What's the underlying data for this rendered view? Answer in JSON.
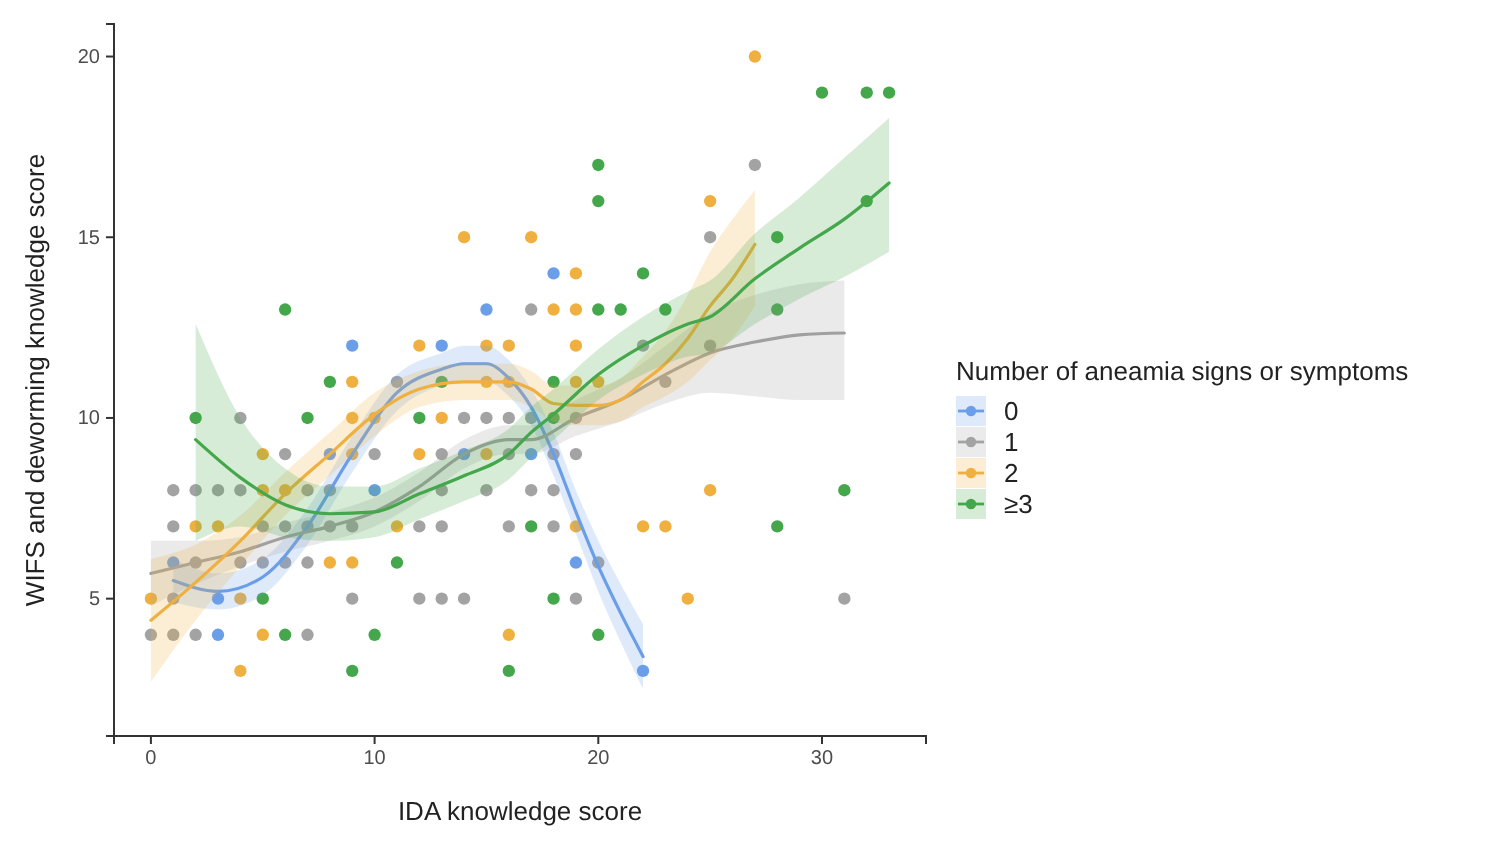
{
  "chart_data": {
    "type": "scatter",
    "xlabel": "IDA knowledge score",
    "ylabel": "WIFS and deworming knowledge score",
    "legend_title": "Number of aneamia signs or symptoms",
    "xlim": [
      -1.65,
      34.65
    ],
    "ylim": [
      1.2,
      20.9
    ],
    "xticks": [
      0,
      10,
      20,
      30
    ],
    "yticks": [
      5,
      10,
      15,
      20
    ],
    "grid": false,
    "legend": "right",
    "series": [
      {
        "marker": "circle",
        "name": "0",
        "color": "#6b9ee8",
        "x": [
          3,
          3,
          1,
          8,
          9,
          10,
          13,
          14,
          15,
          17,
          18,
          19,
          22
        ],
        "values": [
          4,
          5,
          6,
          9,
          12,
          8,
          12,
          9,
          13,
          9,
          14,
          6,
          3
        ]
      },
      {
        "marker": "circle",
        "name": "1",
        "color": "#a3a3a3",
        "x": [
          11,
          4,
          14,
          6,
          10,
          13,
          1,
          2,
          4,
          7,
          8,
          13,
          1,
          5,
          6,
          7,
          8,
          9,
          12,
          13,
          2,
          4,
          5,
          6,
          7,
          1,
          9,
          12,
          13,
          14,
          0,
          1,
          2,
          7,
          25,
          17,
          22,
          25,
          23,
          15,
          16,
          17,
          19,
          16,
          18,
          19,
          15,
          17,
          18,
          16,
          18,
          19,
          20,
          27,
          31,
          3
        ],
        "values": [
          11,
          10,
          10,
          9,
          9,
          9,
          8,
          8,
          8,
          8,
          8,
          8,
          7,
          7,
          7,
          7,
          7,
          7,
          7,
          7,
          6,
          6,
          6,
          6,
          6,
          5,
          5,
          5,
          5,
          5,
          4,
          4,
          4,
          4,
          15,
          13,
          12,
          12,
          11,
          10,
          10,
          10,
          10,
          9,
          9,
          9,
          8,
          8,
          8,
          7,
          7,
          5,
          6,
          17,
          5,
          8
        ]
      },
      {
        "marker": "circle",
        "name": "2",
        "color": "#efb040",
        "x": [
          14,
          12,
          9,
          9,
          13,
          12,
          5,
          9,
          5,
          6,
          2,
          3,
          11,
          8,
          9,
          0,
          4,
          5,
          4,
          25,
          17,
          19,
          18,
          19,
          15,
          16,
          19,
          15,
          16,
          19,
          20,
          15,
          25,
          19,
          22,
          23,
          24,
          16,
          27,
          10
        ],
        "values": [
          15,
          12,
          11,
          10,
          10,
          9,
          9,
          9,
          8,
          8,
          7,
          7,
          7,
          6,
          6,
          5,
          5,
          4,
          3,
          16,
          15,
          14,
          13,
          13,
          12,
          12,
          12,
          11,
          11,
          11,
          11,
          9,
          8,
          7,
          7,
          7,
          5,
          4,
          20,
          10
        ]
      },
      {
        "marker": "circle",
        "name": "≥3",
        "color": "#44a74b",
        "x": [
          6,
          8,
          2,
          7,
          12,
          5,
          6,
          10,
          11,
          9,
          20,
          20,
          22,
          20,
          21,
          23,
          18,
          18,
          17,
          18,
          20,
          16,
          30,
          32,
          33,
          32,
          28,
          28,
          31,
          28,
          13
        ],
        "values": [
          13,
          11,
          10,
          10,
          10,
          5,
          4,
          4,
          6,
          3,
          17,
          16,
          14,
          13,
          13,
          13,
          11,
          10,
          7,
          5,
          4,
          3,
          19,
          19,
          19,
          16,
          15,
          13,
          8,
          7,
          11
        ]
      },
      {
        "type": "line",
        "marker": "none",
        "color": "#6b9ee8",
        "x": [
          1,
          3,
          5,
          7,
          9,
          11,
          13,
          14,
          15,
          16,
          17,
          18,
          19,
          20,
          21,
          22
        ],
        "values": [
          5.5,
          5.2,
          5.6,
          7,
          9,
          10.7,
          11.35,
          11.5,
          11.5,
          11.1,
          10.3,
          9,
          7.4,
          5.9,
          4.6,
          3.4
        ],
        "lower": [
          4.9,
          4.7,
          5.1,
          6.5,
          8.5,
          10.2,
          10.9,
          11,
          11,
          10.6,
          9.8,
          8.4,
          6.8,
          5.2,
          3.8,
          2.5
        ],
        "upper": [
          6.1,
          5.7,
          6.1,
          7.5,
          9.5,
          11.2,
          11.8,
          12,
          12,
          11.6,
          10.8,
          9.6,
          8,
          6.6,
          5.4,
          4.3
        ]
      },
      {
        "type": "line",
        "marker": "none",
        "color": "#a0a0a0",
        "x": [
          0,
          2,
          4,
          6,
          8,
          10,
          12,
          14,
          16,
          17,
          19,
          21,
          23,
          25,
          27,
          29,
          31
        ],
        "values": [
          5.7,
          6,
          6.3,
          6.7,
          7,
          7.4,
          8.1,
          9,
          9.4,
          9.4,
          10,
          10.5,
          11.2,
          11.8,
          12.1,
          12.3,
          12.35
        ],
        "lower": [
          4.8,
          5.4,
          5.9,
          6.3,
          6.6,
          7,
          7.7,
          8.6,
          9,
          9,
          9.5,
          9.9,
          10.4,
          10.7,
          10.6,
          10.5,
          10.5
        ],
        "upper": [
          6.6,
          6.6,
          6.7,
          7.1,
          7.4,
          7.8,
          8.5,
          9.4,
          9.8,
          9.8,
          10.5,
          11.1,
          12,
          12.9,
          13.4,
          13.7,
          13.8
        ]
      },
      {
        "type": "line",
        "marker": "none",
        "color": "#efb040",
        "x": [
          0,
          2,
          4,
          6,
          8,
          10,
          12,
          14,
          16,
          17,
          18,
          19,
          20,
          21,
          22,
          23,
          24,
          25,
          26,
          27
        ],
        "values": [
          4.4,
          5.45,
          6.6,
          7.9,
          9,
          10.1,
          10.8,
          11,
          11,
          10.8,
          10.4,
          10.35,
          10.35,
          10.5,
          11,
          11.5,
          12.2,
          13.1,
          13.85,
          14.8
        ],
        "lower": [
          2.7,
          4.4,
          5.9,
          7.3,
          8.4,
          9.5,
          10.3,
          10.5,
          10.5,
          10.3,
          9.9,
          9.8,
          9.8,
          9.9,
          10.3,
          10.6,
          11,
          11.6,
          12.2,
          13.1
        ],
        "upper": [
          6.1,
          6.5,
          7.3,
          8.5,
          9.6,
          10.7,
          11.3,
          11.5,
          11.5,
          11.3,
          10.9,
          10.9,
          10.9,
          11.1,
          11.7,
          12.4,
          13.4,
          14.6,
          15.5,
          16.3
        ]
      },
      {
        "type": "line",
        "marker": "none",
        "color": "#44a74b",
        "x": [
          2,
          4,
          6,
          8,
          10,
          12,
          14,
          16,
          17,
          18,
          20,
          22,
          24,
          25,
          27,
          29,
          31,
          33
        ],
        "values": [
          9.4,
          8.35,
          7.6,
          7.35,
          7.4,
          7.9,
          8.4,
          9,
          9.6,
          10.1,
          11.2,
          12,
          12.6,
          12.8,
          13.85,
          14.7,
          15.5,
          16.5
        ],
        "lower": [
          6.6,
          7,
          6.7,
          6.6,
          6.7,
          7.2,
          7.7,
          8.3,
          8.9,
          9.4,
          10.5,
          11.2,
          11.7,
          11.8,
          12.6,
          13.3,
          13.9,
          14.6
        ],
        "upper": [
          12.6,
          10,
          8.6,
          8.1,
          8.1,
          8.6,
          9.1,
          9.7,
          10.3,
          10.8,
          11.9,
          12.8,
          13.5,
          13.8,
          15.1,
          16.1,
          17.2,
          18.3
        ]
      }
    ]
  }
}
